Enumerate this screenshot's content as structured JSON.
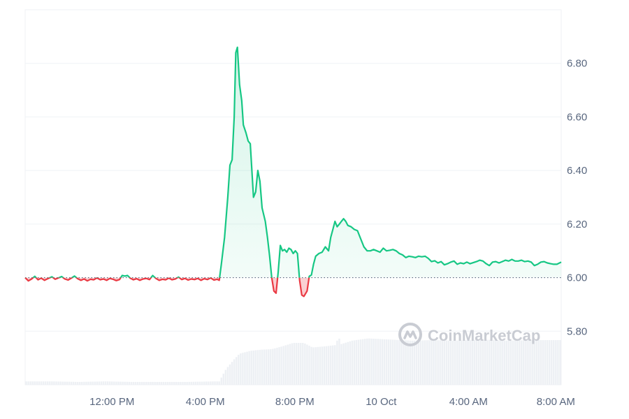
{
  "chart_data": {
    "type": "line",
    "title": "",
    "xlabel": "",
    "ylabel": "",
    "baseline": 6.0,
    "ylim": [
      5.6,
      7.0
    ],
    "xlim": [
      0,
      1
    ],
    "y_ticks": [
      {
        "value": 5.8,
        "label": "5.80"
      },
      {
        "value": 6.0,
        "label": "6.00"
      },
      {
        "value": 6.2,
        "label": "6.20"
      },
      {
        "value": 6.4,
        "label": "6.40"
      },
      {
        "value": 6.6,
        "label": "6.60"
      },
      {
        "value": 6.8,
        "label": "6.80"
      }
    ],
    "x_ticks": [
      {
        "pos": 0.162,
        "label": "12:00 PM"
      },
      {
        "pos": 0.336,
        "label": "4:00 PM"
      },
      {
        "pos": 0.503,
        "label": "8:00 PM"
      },
      {
        "pos": 0.664,
        "label": "10 Oct"
      },
      {
        "pos": 0.827,
        "label": "4:00 AM"
      },
      {
        "pos": 0.99,
        "label": "8:00 AM"
      }
    ],
    "colors": {
      "up": "#16c784",
      "down": "#ea3943",
      "grid": "#eff2f5",
      "volume": "#edf0f4",
      "baseline": "#58667e"
    },
    "price_series": [
      [
        0.0,
        6.0
      ],
      [
        0.006,
        5.988
      ],
      [
        0.012,
        5.995
      ],
      [
        0.018,
        6.005
      ],
      [
        0.024,
        5.992
      ],
      [
        0.03,
        5.998
      ],
      [
        0.036,
        5.99
      ],
      [
        0.042,
        5.996
      ],
      [
        0.05,
        6.003
      ],
      [
        0.056,
        5.994
      ],
      [
        0.062,
        5.999
      ],
      [
        0.068,
        6.004
      ],
      [
        0.074,
        5.995
      ],
      [
        0.08,
        5.991
      ],
      [
        0.086,
        5.998
      ],
      [
        0.092,
        6.006
      ],
      [
        0.098,
        5.996
      ],
      [
        0.104,
        5.99
      ],
      [
        0.11,
        5.995
      ],
      [
        0.116,
        5.988
      ],
      [
        0.122,
        5.994
      ],
      [
        0.128,
        5.992
      ],
      [
        0.134,
        5.999
      ],
      [
        0.14,
        5.992
      ],
      [
        0.146,
        5.995
      ],
      [
        0.152,
        5.99
      ],
      [
        0.158,
        5.997
      ],
      [
        0.164,
        5.994
      ],
      [
        0.17,
        5.989
      ],
      [
        0.176,
        5.993
      ],
      [
        0.181,
        6.008
      ],
      [
        0.186,
        6.006
      ],
      [
        0.191,
        6.008
      ],
      [
        0.196,
        5.998
      ],
      [
        0.202,
        5.992
      ],
      [
        0.208,
        5.996
      ],
      [
        0.214,
        5.99
      ],
      [
        0.22,
        5.995
      ],
      [
        0.226,
        5.997
      ],
      [
        0.232,
        5.993
      ],
      [
        0.238,
        6.008
      ],
      [
        0.244,
        5.997
      ],
      [
        0.25,
        5.99
      ],
      [
        0.256,
        5.994
      ],
      [
        0.262,
        5.992
      ],
      [
        0.268,
        5.998
      ],
      [
        0.274,
        5.992
      ],
      [
        0.28,
        5.995
      ],
      [
        0.286,
        6.002
      ],
      [
        0.292,
        5.993
      ],
      [
        0.298,
        5.997
      ],
      [
        0.304,
        5.991
      ],
      [
        0.31,
        5.995
      ],
      [
        0.316,
        5.993
      ],
      [
        0.322,
        5.997
      ],
      [
        0.328,
        5.99
      ],
      [
        0.334,
        5.996
      ],
      [
        0.34,
        5.993
      ],
      [
        0.346,
        5.999
      ],
      [
        0.352,
        5.991
      ],
      [
        0.358,
        5.994
      ],
      [
        0.362,
        5.99
      ],
      [
        0.366,
        6.05
      ],
      [
        0.372,
        6.15
      ],
      [
        0.378,
        6.3
      ],
      [
        0.382,
        6.42
      ],
      [
        0.386,
        6.44
      ],
      [
        0.39,
        6.6
      ],
      [
        0.393,
        6.84
      ],
      [
        0.396,
        6.86
      ],
      [
        0.4,
        6.72
      ],
      [
        0.404,
        6.66
      ],
      [
        0.407,
        6.57
      ],
      [
        0.412,
        6.54
      ],
      [
        0.416,
        6.51
      ],
      [
        0.42,
        6.5
      ],
      [
        0.423,
        6.4
      ],
      [
        0.426,
        6.3
      ],
      [
        0.43,
        6.32
      ],
      [
        0.434,
        6.4
      ],
      [
        0.438,
        6.36
      ],
      [
        0.442,
        6.26
      ],
      [
        0.448,
        6.21
      ],
      [
        0.452,
        6.15
      ],
      [
        0.456,
        6.08
      ],
      [
        0.46,
        6.0
      ],
      [
        0.464,
        5.95
      ],
      [
        0.468,
        5.942
      ],
      [
        0.472,
        6.02
      ],
      [
        0.476,
        6.12
      ],
      [
        0.48,
        6.1
      ],
      [
        0.484,
        6.105
      ],
      [
        0.488,
        6.095
      ],
      [
        0.492,
        6.11
      ],
      [
        0.496,
        6.105
      ],
      [
        0.5,
        6.09
      ],
      [
        0.504,
        6.1
      ],
      [
        0.508,
        6.09
      ],
      [
        0.512,
        5.99
      ],
      [
        0.516,
        5.935
      ],
      [
        0.52,
        5.93
      ],
      [
        0.526,
        5.95
      ],
      [
        0.53,
        6.005
      ],
      [
        0.534,
        6.01
      ],
      [
        0.538,
        6.05
      ],
      [
        0.542,
        6.08
      ],
      [
        0.548,
        6.09
      ],
      [
        0.554,
        6.095
      ],
      [
        0.56,
        6.115
      ],
      [
        0.566,
        6.1
      ],
      [
        0.57,
        6.15
      ],
      [
        0.574,
        6.18
      ],
      [
        0.578,
        6.21
      ],
      [
        0.582,
        6.19
      ],
      [
        0.586,
        6.2
      ],
      [
        0.59,
        6.21
      ],
      [
        0.594,
        6.22
      ],
      [
        0.598,
        6.21
      ],
      [
        0.602,
        6.195
      ],
      [
        0.608,
        6.19
      ],
      [
        0.614,
        6.18
      ],
      [
        0.62,
        6.175
      ],
      [
        0.626,
        6.145
      ],
      [
        0.632,
        6.115
      ],
      [
        0.638,
        6.1
      ],
      [
        0.644,
        6.1
      ],
      [
        0.65,
        6.105
      ],
      [
        0.656,
        6.1
      ],
      [
        0.662,
        6.095
      ],
      [
        0.668,
        6.11
      ],
      [
        0.674,
        6.1
      ],
      [
        0.68,
        6.102
      ],
      [
        0.686,
        6.105
      ],
      [
        0.692,
        6.1
      ],
      [
        0.698,
        6.09
      ],
      [
        0.704,
        6.085
      ],
      [
        0.71,
        6.075
      ],
      [
        0.716,
        6.08
      ],
      [
        0.722,
        6.078
      ],
      [
        0.728,
        6.075
      ],
      [
        0.734,
        6.08
      ],
      [
        0.74,
        6.078
      ],
      [
        0.746,
        6.08
      ],
      [
        0.752,
        6.072
      ],
      [
        0.758,
        6.06
      ],
      [
        0.764,
        6.063
      ],
      [
        0.77,
        6.055
      ],
      [
        0.776,
        6.06
      ],
      [
        0.782,
        6.048
      ],
      [
        0.788,
        6.052
      ],
      [
        0.794,
        6.058
      ],
      [
        0.8,
        6.062
      ],
      [
        0.806,
        6.05
      ],
      [
        0.812,
        6.055
      ],
      [
        0.818,
        6.052
      ],
      [
        0.824,
        6.058
      ],
      [
        0.83,
        6.052
      ],
      [
        0.836,
        6.056
      ],
      [
        0.842,
        6.06
      ],
      [
        0.848,
        6.065
      ],
      [
        0.854,
        6.062
      ],
      [
        0.86,
        6.052
      ],
      [
        0.866,
        6.045
      ],
      [
        0.872,
        6.058
      ],
      [
        0.878,
        6.06
      ],
      [
        0.884,
        6.055
      ],
      [
        0.89,
        6.06
      ],
      [
        0.896,
        6.065
      ],
      [
        0.902,
        6.062
      ],
      [
        0.908,
        6.068
      ],
      [
        0.914,
        6.062
      ],
      [
        0.92,
        6.062
      ],
      [
        0.926,
        6.065
      ],
      [
        0.932,
        6.06
      ],
      [
        0.938,
        6.062
      ],
      [
        0.944,
        6.058
      ],
      [
        0.95,
        6.045
      ],
      [
        0.956,
        6.05
      ],
      [
        0.962,
        6.058
      ],
      [
        0.968,
        6.06
      ],
      [
        0.974,
        6.055
      ],
      [
        0.98,
        6.052
      ],
      [
        0.986,
        6.05
      ],
      [
        0.992,
        6.05
      ],
      [
        1.0,
        6.058
      ]
    ],
    "volume_series": [
      [
        0.0,
        0.06
      ],
      [
        0.05,
        0.06
      ],
      [
        0.1,
        0.05
      ],
      [
        0.15,
        0.06
      ],
      [
        0.2,
        0.05
      ],
      [
        0.25,
        0.05
      ],
      [
        0.3,
        0.05
      ],
      [
        0.355,
        0.06
      ],
      [
        0.362,
        0.06
      ],
      [
        0.375,
        0.28
      ],
      [
        0.39,
        0.45
      ],
      [
        0.4,
        0.55
      ],
      [
        0.42,
        0.6
      ],
      [
        0.44,
        0.62
      ],
      [
        0.46,
        0.63
      ],
      [
        0.48,
        0.68
      ],
      [
        0.5,
        0.74
      ],
      [
        0.52,
        0.74
      ],
      [
        0.536,
        0.66
      ],
      [
        0.56,
        0.68
      ],
      [
        0.578,
        0.7
      ],
      [
        0.585,
        0.84
      ],
      [
        0.59,
        0.72
      ],
      [
        0.61,
        0.78
      ],
      [
        0.64,
        0.82
      ],
      [
        0.68,
        0.8
      ],
      [
        0.72,
        0.78
      ],
      [
        0.76,
        0.79
      ],
      [
        0.8,
        0.78
      ],
      [
        0.85,
        0.8
      ],
      [
        0.9,
        0.78
      ],
      [
        0.95,
        0.79
      ],
      [
        1.0,
        0.79
      ]
    ]
  },
  "watermark": {
    "icon": "coinmarketcap-logo-icon",
    "text": "CoinMarketCap"
  }
}
